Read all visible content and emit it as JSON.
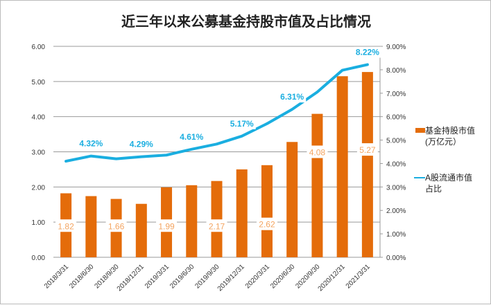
{
  "chart_data": {
    "type": "bar+line",
    "title": "近三年以来公募基金持股市值及占比情况",
    "categories": [
      "2018/3/31",
      "2018/6/30",
      "2018/9/30",
      "2018/12/31",
      "2019/3/31",
      "2019/6/30",
      "2019/9/30",
      "2019/12/31",
      "2020/3/31",
      "2020/6/30",
      "2020/9/30",
      "2020/12/31",
      "2021/3/31"
    ],
    "series": [
      {
        "name": "基金持股市值(万亿元)",
        "type": "bar",
        "axis": "left",
        "color": "#E46C0A",
        "values": [
          1.82,
          1.74,
          1.66,
          1.52,
          1.99,
          2.05,
          2.17,
          2.5,
          2.62,
          3.28,
          4.08,
          5.15,
          5.27
        ],
        "data_labels": [
          "1.82",
          null,
          "1.66",
          null,
          "1.99",
          null,
          "2.17",
          null,
          "2.62",
          null,
          "4.08",
          null,
          "5.27"
        ]
      },
      {
        "name": "A股流通市值占比",
        "type": "line",
        "axis": "right",
        "color": "#1AAEE0",
        "values": [
          4.1,
          4.32,
          4.2,
          4.29,
          4.36,
          4.61,
          4.83,
          5.17,
          5.7,
          6.31,
          7.05,
          7.98,
          8.22
        ],
        "data_labels": [
          null,
          "4.32%",
          null,
          "4.29%",
          null,
          "4.61%",
          null,
          "5.17%",
          null,
          "6.31%",
          null,
          null,
          "8.22%"
        ]
      }
    ],
    "y_left": {
      "range": [
        0,
        6
      ],
      "ticks": [
        "0.00",
        "1.00",
        "2.00",
        "3.00",
        "4.00",
        "5.00",
        "6.00"
      ]
    },
    "y_right": {
      "range": [
        0,
        9
      ],
      "ticks": [
        "0.00%",
        "1.00%",
        "2.00%",
        "3.00%",
        "4.00%",
        "5.00%",
        "6.00%",
        "7.00%",
        "8.00%",
        "9.00%"
      ]
    },
    "grid": true,
    "legend": "right",
    "legend_entries": [
      {
        "line1": "基金持股市值",
        "line2": "(万亿元）"
      },
      {
        "line1": "A股流通市值",
        "line2": "占比"
      }
    ]
  }
}
